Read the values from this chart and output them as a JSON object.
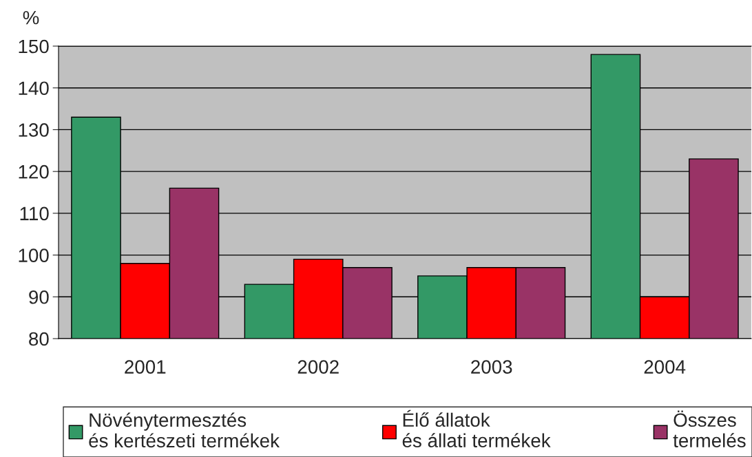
{
  "chart_data": {
    "type": "bar",
    "ylabel": "%",
    "categories": [
      "2001",
      "2002",
      "2003",
      "2004"
    ],
    "series": [
      {
        "name": "Növénytermesztés\nés kertészeti termékek",
        "color": "#339966",
        "values": [
          133,
          93,
          95,
          148
        ]
      },
      {
        "name": "Élő állatok\nés állati termékek",
        "color": "#ff0000",
        "values": [
          98,
          99,
          97,
          90
        ]
      },
      {
        "name": "Összes\ntermelés",
        "color": "#993366",
        "values": [
          116,
          97,
          97,
          123
        ]
      }
    ],
    "ylim": [
      80,
      150
    ],
    "yticks": [
      80,
      90,
      100,
      110,
      120,
      130,
      140,
      150
    ],
    "grid": "y",
    "legend": "bottom"
  }
}
